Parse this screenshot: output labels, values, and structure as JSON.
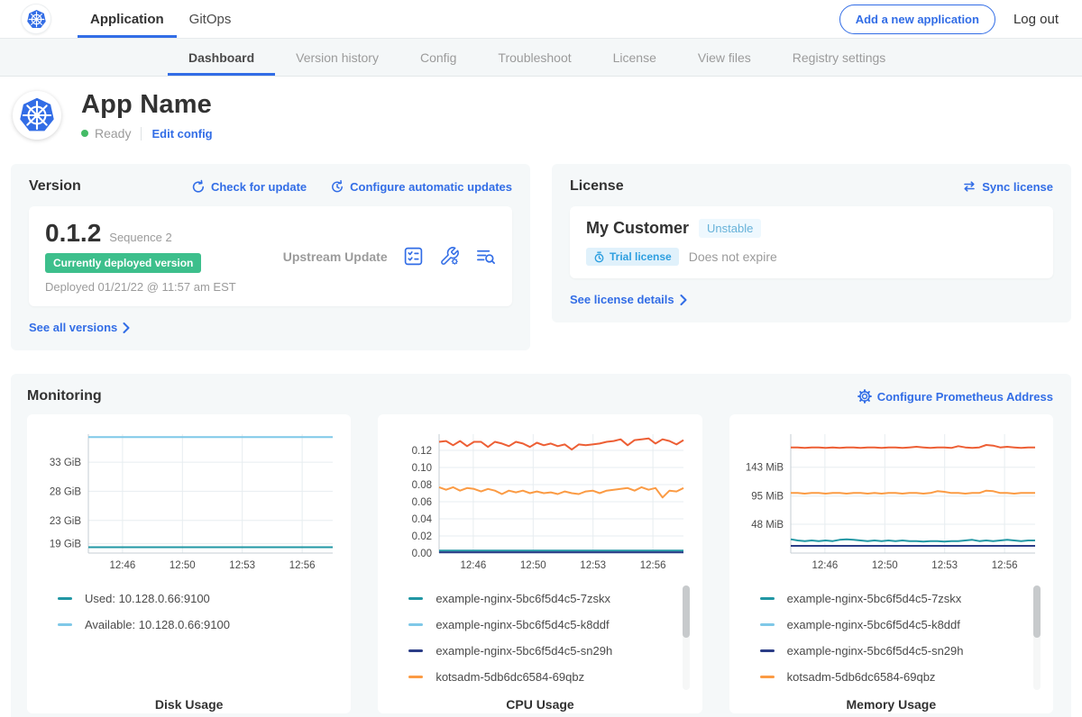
{
  "topnav": {
    "tabs": [
      {
        "label": "Application",
        "active": true
      },
      {
        "label": "GitOps",
        "active": false
      }
    ],
    "add_application_button": "Add a new application",
    "logout_label": "Log out"
  },
  "subnav": {
    "tabs": [
      {
        "label": "Dashboard",
        "active": true
      },
      {
        "label": "Version history",
        "active": false
      },
      {
        "label": "Config",
        "active": false
      },
      {
        "label": "Troubleshoot",
        "active": false
      },
      {
        "label": "License",
        "active": false
      },
      {
        "label": "View files",
        "active": false
      },
      {
        "label": "Registry settings",
        "active": false
      }
    ]
  },
  "app_header": {
    "name": "App Name",
    "status": "Ready",
    "edit_config": "Edit config"
  },
  "version_card": {
    "title": "Version",
    "check_update": "Check for update",
    "auto_updates": "Configure automatic updates",
    "version": "0.1.2",
    "sequence": "Sequence 2",
    "deployed_badge": "Currently deployed version",
    "deployed_at": "Deployed 01/21/22 @ 11:57 am EST",
    "update_type": "Upstream Update",
    "see_all": "See all versions"
  },
  "license_card": {
    "title": "License",
    "sync": "Sync license",
    "customer": "My Customer",
    "channel_badge": "Unstable",
    "type_badge": "Trial license",
    "expiry": "Does not expire",
    "details": "See license details"
  },
  "monitoring": {
    "title": "Monitoring",
    "configure": "Configure Prometheus Address"
  },
  "colors": {
    "accent_blue": "#326de6",
    "success_green": "#3dbf8c",
    "ready_dot_green": "#44bb66"
  },
  "chart_data": [
    {
      "type": "line",
      "title": "Disk Usage",
      "ylim": [
        17.4,
        37.8
      ],
      "yticks": [
        {
          "v": 19,
          "label": "19 GiB"
        },
        {
          "v": 23,
          "label": "23 GiB"
        },
        {
          "v": 28,
          "label": "28 GiB"
        },
        {
          "v": 33,
          "label": "33 GiB"
        }
      ],
      "xticks": [
        {
          "f": 0.14,
          "label": "12:46"
        },
        {
          "f": 0.385,
          "label": "12:50"
        },
        {
          "f": 0.63,
          "label": "12:53"
        },
        {
          "f": 0.875,
          "label": "12:56"
        }
      ],
      "grid": true,
      "legend_position": "bottom-left",
      "scrollbar": false,
      "series": [
        {
          "name": "Used: 10.128.0.66:9100",
          "color": "#2197a4",
          "values": [
            18.4,
            18.4
          ]
        },
        {
          "name": "Available: 10.128.0.66:9100",
          "color": "#7fc8e8",
          "values": [
            37.3,
            37.3
          ]
        }
      ]
    },
    {
      "type": "line",
      "title": "CPU Usage",
      "ylim": [
        0,
        0.139
      ],
      "yticks": [
        {
          "v": 0.0,
          "label": "0.00"
        },
        {
          "v": 0.02,
          "label": "0.02"
        },
        {
          "v": 0.04,
          "label": "0.04"
        },
        {
          "v": 0.06,
          "label": "0.06"
        },
        {
          "v": 0.08,
          "label": "0.08"
        },
        {
          "v": 0.1,
          "label": "0.10"
        },
        {
          "v": 0.12,
          "label": "0.12"
        }
      ],
      "xticks": [
        {
          "f": 0.14,
          "label": "12:46"
        },
        {
          "f": 0.385,
          "label": "12:50"
        },
        {
          "f": 0.63,
          "label": "12:53"
        },
        {
          "f": 0.875,
          "label": "12:56"
        }
      ],
      "grid": true,
      "legend_position": "bottom-left",
      "scrollbar": true,
      "series": [
        {
          "name": "example-nginx-5bc6f5d4c5-7zskx",
          "color": "#2197a4",
          "values": [
            0.003,
            0.003
          ]
        },
        {
          "name": "example-nginx-5bc6f5d4c5-k8ddf",
          "color": "#7fc8e8",
          "values": [
            0.001,
            0.001
          ]
        },
        {
          "name": "example-nginx-5bc6f5d4c5-sn29h",
          "color": "#2b3d87",
          "values": [
            0.001,
            0.001
          ]
        },
        {
          "name": "kotsadm-5db6dc6584-69qbz",
          "color": "#fb9b44",
          "values": [
            0.077,
            0.074,
            0.077,
            0.073,
            0.076,
            0.075,
            0.072,
            0.075,
            0.073,
            0.069,
            0.073,
            0.071,
            0.073,
            0.07,
            0.072,
            0.07,
            0.071,
            0.069,
            0.072,
            0.07,
            0.069,
            0.072,
            0.073,
            0.07,
            0.073,
            0.074,
            0.075,
            0.076,
            0.073,
            0.077,
            0.074,
            0.076,
            0.065,
            0.073,
            0.072,
            0.076
          ]
        },
        {
          "name": "",
          "color": "#ed5f35",
          "values": [
            0.13,
            0.131,
            0.126,
            0.131,
            0.125,
            0.13,
            0.13,
            0.124,
            0.13,
            0.128,
            0.125,
            0.13,
            0.128,
            0.124,
            0.129,
            0.126,
            0.128,
            0.125,
            0.127,
            0.121,
            0.127,
            0.126,
            0.127,
            0.128,
            0.13,
            0.131,
            0.133,
            0.126,
            0.132,
            0.133,
            0.134,
            0.128,
            0.133,
            0.131,
            0.127,
            0.132
          ]
        }
      ]
    },
    {
      "type": "line",
      "title": "Memory Usage",
      "ylim": [
        0,
        198
      ],
      "yticks": [
        {
          "v": 48,
          "label": "48 MiB"
        },
        {
          "v": 95,
          "label": "95 MiB"
        },
        {
          "v": 143,
          "label": "143 MiB"
        }
      ],
      "xticks": [
        {
          "f": 0.14,
          "label": "12:46"
        },
        {
          "f": 0.385,
          "label": "12:50"
        },
        {
          "f": 0.63,
          "label": "12:53"
        },
        {
          "f": 0.875,
          "label": "12:56"
        }
      ],
      "grid": true,
      "legend_position": "bottom-left",
      "scrollbar": true,
      "series": [
        {
          "name": "example-nginx-5bc6f5d4c5-7zskx",
          "color": "#2197a4",
          "values": [
            23,
            21,
            20,
            21,
            20,
            21,
            20,
            22,
            23,
            22,
            21,
            20,
            21,
            20,
            21,
            20,
            21,
            20,
            20,
            19,
            20,
            20,
            19,
            20,
            20,
            21,
            22,
            20,
            21,
            20,
            21,
            22,
            21,
            20,
            21,
            21
          ]
        },
        {
          "name": "example-nginx-5bc6f5d4c5-k8ddf",
          "color": "#7fc8e8",
          "values": [
            12,
            12
          ]
        },
        {
          "name": "example-nginx-5bc6f5d4c5-sn29h",
          "color": "#2b3d87",
          "values": [
            12,
            12
          ]
        },
        {
          "name": "kotsadm-5db6dc6584-69qbz",
          "color": "#fb9b44",
          "values": [
            100,
            100,
            99,
            100,
            100,
            99,
            100,
            100,
            99,
            100,
            100,
            99,
            100,
            99,
            100,
            100,
            99,
            100,
            100,
            99,
            100,
            103,
            102,
            100,
            100,
            99,
            100,
            100,
            104,
            103,
            100,
            100,
            99,
            100,
            100,
            100
          ]
        },
        {
          "name": "",
          "color": "#ed5f35",
          "values": [
            176,
            176,
            175,
            176,
            176,
            175,
            176,
            175,
            176,
            176,
            175,
            176,
            176,
            175,
            176,
            176,
            175,
            176,
            177,
            176,
            175,
            176,
            176,
            175,
            178,
            176,
            175,
            176,
            180,
            179,
            176,
            177,
            176,
            175,
            176,
            176
          ]
        }
      ]
    }
  ]
}
